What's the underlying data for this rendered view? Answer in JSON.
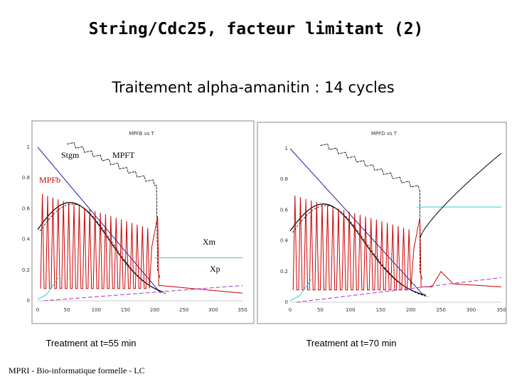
{
  "header": {
    "title": "String/Cdc25, facteur limitant (2)",
    "subtitle": "Traitement alpha-amanitin : 14 cycles"
  },
  "panels": [
    {
      "plot_title": "MPFB vs T",
      "yticks": [
        "1",
        "0.8",
        "0.6",
        "0.4",
        "0.2",
        "0"
      ],
      "xticks": [
        "0",
        "50",
        "100",
        "150",
        "200",
        "250",
        "300",
        "350"
      ],
      "labels": [
        "Stgm",
        "MPFT",
        "MPFb",
        "Xm",
        "Xp"
      ],
      "caption": "Treatment at t=55 min"
    },
    {
      "plot_title": "MPFD vs T",
      "yticks": [
        "1",
        "0.8",
        "0.6",
        "0.4",
        "0.2",
        "0"
      ],
      "xticks": [
        "0",
        "50",
        "100",
        "150",
        "200",
        "250",
        "300",
        "350"
      ],
      "caption": "Treatment at t=70 min"
    }
  ],
  "footer": "MPRI - Bio-informatique formelle - LC"
}
